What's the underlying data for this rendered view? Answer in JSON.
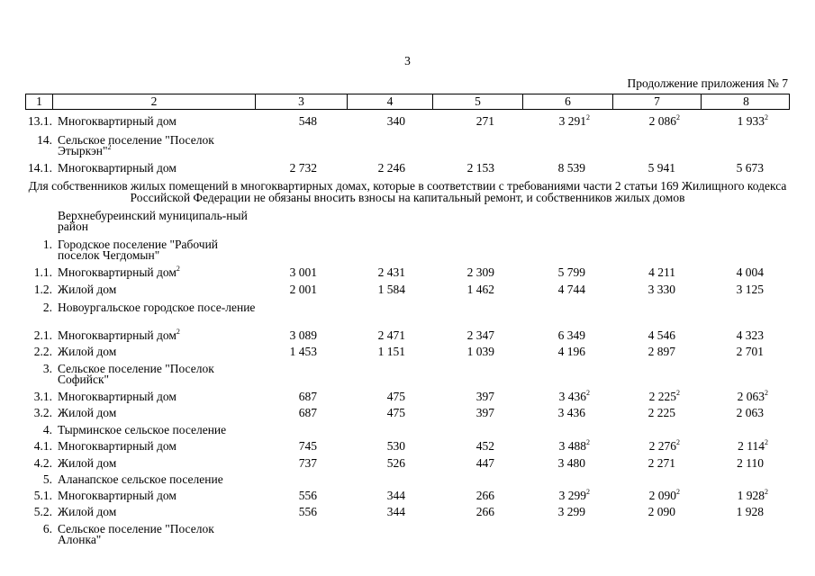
{
  "page_number": "3",
  "continuation": "Продолжение приложения № 7",
  "header_columns": [
    "1",
    "2",
    "3",
    "4",
    "5",
    "6",
    "7",
    "8"
  ],
  "rows": [
    {
      "type": "data",
      "num": "13.1.",
      "label": "Многоквартирный дом",
      "values": [
        {
          "v": "548"
        },
        {
          "v": "340"
        },
        {
          "v": "271"
        },
        {
          "v": "3 291",
          "sup": "2"
        },
        {
          "v": "2 086",
          "sup": "2"
        },
        {
          "v": "1 933",
          "sup": "2"
        }
      ]
    },
    {
      "type": "section",
      "num": "14.",
      "label": "Сельское поселение \"Поселок Этыркэн\"",
      "label_sup": "2"
    },
    {
      "type": "data",
      "num": "14.1.",
      "label": "Многоквартирный дом",
      "values": [
        {
          "v": "2 732"
        },
        {
          "v": "2 246"
        },
        {
          "v": "2 153"
        },
        {
          "v": "8 539"
        },
        {
          "v": "5 941"
        },
        {
          "v": "5 673"
        }
      ]
    },
    {
      "type": "paragraph",
      "text": "Для собственников жилых помещений в многоквартирных домах, которые в соответствии с требованиями части 2 статьи 169 Жилищного кодекса Российской Федерации не обязаны вносить взносы на капитальный ремонт, и собственников жилых домов"
    },
    {
      "type": "section",
      "num": "",
      "label": "Верхнебуреинский муниципаль-ный район"
    },
    {
      "type": "section",
      "num": "1.",
      "label": "Городское поселение \"Рабочий поселок Чегдомын\""
    },
    {
      "type": "data",
      "num": "1.1.",
      "label": "Многоквартирный дом",
      "label_sup": "2",
      "values": [
        {
          "v": "3 001"
        },
        {
          "v": "2 431"
        },
        {
          "v": "2 309"
        },
        {
          "v": "5 799"
        },
        {
          "v": "4 211"
        },
        {
          "v": "4 004"
        }
      ]
    },
    {
      "type": "data",
      "num": "1.2.",
      "label": "Жилой дом",
      "values": [
        {
          "v": "2 001"
        },
        {
          "v": "1 584"
        },
        {
          "v": "1 462"
        },
        {
          "v": "4 744"
        },
        {
          "v": "3 330"
        },
        {
          "v": "3 125"
        }
      ]
    },
    {
      "type": "section",
      "num": "2.",
      "label": "Новоургальское городское посе-ление"
    },
    {
      "type": "data",
      "num": "2.1.",
      "label": "Многоквартирный дом",
      "label_sup": "2",
      "values": [
        {
          "v": "3 089"
        },
        {
          "v": "2 471"
        },
        {
          "v": "2 347"
        },
        {
          "v": "6 349"
        },
        {
          "v": "4 546"
        },
        {
          "v": "4 323"
        }
      ]
    },
    {
      "type": "data",
      "num": "2.2.",
      "label": "Жилой дом",
      "values": [
        {
          "v": "1 453"
        },
        {
          "v": "1 151"
        },
        {
          "v": "1 039"
        },
        {
          "v": "4 196"
        },
        {
          "v": "2 897"
        },
        {
          "v": "2 701"
        }
      ]
    },
    {
      "type": "section",
      "num": "3.",
      "label": "Сельское поселение \"Поселок Софийск\""
    },
    {
      "type": "data",
      "num": "3.1.",
      "label": "Многоквартирный дом",
      "values": [
        {
          "v": "687"
        },
        {
          "v": "475"
        },
        {
          "v": "397"
        },
        {
          "v": "3 436",
          "sup": "2"
        },
        {
          "v": "2 225",
          "sup": "2"
        },
        {
          "v": "2 063",
          "sup": "2"
        }
      ]
    },
    {
      "type": "data",
      "num": "3.2.",
      "label": "Жилой дом",
      "values": [
        {
          "v": "687"
        },
        {
          "v": "475"
        },
        {
          "v": "397"
        },
        {
          "v": "3 436"
        },
        {
          "v": "2 225"
        },
        {
          "v": "2 063"
        }
      ]
    },
    {
      "type": "section",
      "num": "4.",
      "label": "Тырминское сельское поселение"
    },
    {
      "type": "data",
      "num": "4.1.",
      "label": "Многоквартирный дом",
      "values": [
        {
          "v": "745"
        },
        {
          "v": "530"
        },
        {
          "v": "452"
        },
        {
          "v": "3 488",
          "sup": "2"
        },
        {
          "v": "2 276",
          "sup": "2"
        },
        {
          "v": "2 114",
          "sup": "2"
        }
      ]
    },
    {
      "type": "data",
      "num": "4.2.",
      "label": "Жилой дом",
      "values": [
        {
          "v": "737"
        },
        {
          "v": "526"
        },
        {
          "v": "447"
        },
        {
          "v": "3 480"
        },
        {
          "v": "2 271"
        },
        {
          "v": "2 110"
        }
      ]
    },
    {
      "type": "section",
      "num": "5.",
      "label": "Аланапское сельское поселение"
    },
    {
      "type": "data",
      "num": "5.1.",
      "label": "Многоквартирный дом",
      "values": [
        {
          "v": "556"
        },
        {
          "v": "344"
        },
        {
          "v": "266"
        },
        {
          "v": "3 299",
          "sup": "2"
        },
        {
          "v": "2 090",
          "sup": "2"
        },
        {
          "v": "1 928",
          "sup": "2"
        }
      ]
    },
    {
      "type": "data",
      "num": "5.2.",
      "label": "Жилой дом",
      "values": [
        {
          "v": "556"
        },
        {
          "v": "344"
        },
        {
          "v": "266"
        },
        {
          "v": "3 299"
        },
        {
          "v": "2 090"
        },
        {
          "v": "1 928"
        }
      ]
    },
    {
      "type": "section",
      "num": "6.",
      "label": "Сельское поселение \"Поселок Алонка\""
    }
  ]
}
